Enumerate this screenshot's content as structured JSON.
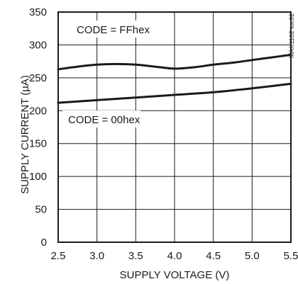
{
  "chart_data": {
    "type": "line",
    "xlabel": "SUPPLY VOLTAGE (V)",
    "ylabel": "SUPPLY CURRENT (µA)",
    "xlim": [
      2.5,
      5.5
    ],
    "ylim": [
      0,
      350
    ],
    "x_ticks": [
      2.5,
      3.0,
      3.5,
      4.0,
      4.5,
      5.0,
      5.5
    ],
    "x_tick_labels": [
      "2.5",
      "3.0",
      "3.5",
      "4.0",
      "4.5",
      "5.0",
      "5.5"
    ],
    "y_ticks": [
      0,
      50,
      100,
      150,
      200,
      250,
      300,
      350
    ],
    "y_tick_labels": [
      "0",
      "50",
      "100",
      "150",
      "200",
      "250",
      "300",
      "350"
    ],
    "grid": true,
    "series": [
      {
        "name": "CODE = FFhex",
        "x": [
          2.5,
          2.75,
          3.0,
          3.25,
          3.5,
          3.75,
          4.0,
          4.25,
          4.5,
          4.75,
          5.0,
          5.25,
          5.5
        ],
        "values": [
          263,
          267,
          270,
          271,
          270,
          267,
          264,
          266,
          270,
          273,
          277,
          281,
          285
        ]
      },
      {
        "name": "CODE = 00hex",
        "x": [
          2.5,
          3.0,
          3.5,
          4.0,
          4.5,
          5.0,
          5.5
        ],
        "values": [
          212,
          216,
          220,
          224,
          228,
          234,
          241
        ]
      }
    ],
    "annotations": [
      {
        "text": "CODE = FFhex",
        "series": 0
      },
      {
        "text": "CODE = 00hex",
        "series": 1
      }
    ],
    "watermark": "MAX1102 toc02",
    "colors": {
      "line": "#1a1a1a",
      "grid": "#1a1a1a",
      "background": "#ffffff"
    }
  }
}
